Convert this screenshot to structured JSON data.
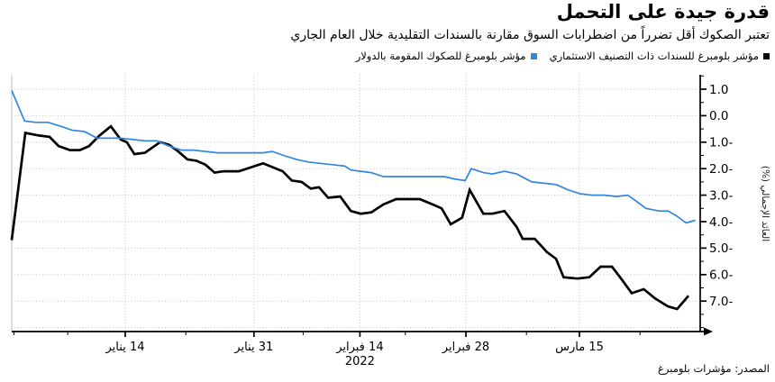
{
  "chart_data": {
    "type": "line",
    "title": "قدرة جيدة على التحمل",
    "subtitle": "تعتبر الصكوك أقل تضرراً من اضطرابات السوق مقارنة بالسندات التقليدية خلال العام الجاري",
    "source": "المصدر: مؤشرات بلومبرغ",
    "ylabel": "العائد الإجمالي (%)",
    "xlabel": "",
    "legend_position": "top-right",
    "grid": "dotted",
    "ylim": [
      -8.2,
      1.55
    ],
    "y_axis": {
      "grid_values": [
        1,
        0,
        -1,
        -2,
        -3,
        -4,
        -5,
        -6,
        -7,
        -8
      ],
      "ticks": [
        {
          "v": 1,
          "label": "1.0"
        },
        {
          "v": 0,
          "label": "0.0"
        },
        {
          "v": -1,
          "label": "1.0-"
        },
        {
          "v": -2,
          "label": "2.0-"
        },
        {
          "v": -3,
          "label": "3.0-"
        },
        {
          "v": -4,
          "label": "4.0-"
        },
        {
          "v": -5,
          "label": "5.0-"
        },
        {
          "v": -6,
          "label": "6.0-"
        },
        {
          "v": -7,
          "label": "7.0-"
        }
      ],
      "minor_values": [
        1.5,
        0.5,
        -0.5,
        -1.5,
        -2.5,
        -3.5,
        -4.5,
        -5.5,
        -6.5,
        -7.5,
        -8
      ]
    },
    "x_axis": {
      "major_ticks": [
        {
          "day": 15,
          "label": "14 يناير"
        },
        {
          "day": 32,
          "label": "31 يناير"
        },
        {
          "day": 46,
          "label": "14 فبراير"
        },
        {
          "day": 60,
          "label": "28 فبراير"
        },
        {
          "day": 75,
          "label": "15 مارس"
        }
      ],
      "minor_tick_days": [
        0.3,
        7.4,
        23,
        38.5,
        52,
        68,
        83
      ],
      "year_label": "2022",
      "year_label_day": 46
    },
    "series": [
      {
        "name": "مؤشر بلومبرغ للسندات ذات التصنيف الاستثماري",
        "color": "#000000",
        "width": 2.7,
        "points": [
          [
            0,
            -4.7
          ],
          [
            1.8,
            -0.65
          ],
          [
            3.6,
            -0.75
          ],
          [
            5,
            -0.8
          ],
          [
            6.2,
            -1.15
          ],
          [
            7.7,
            -1.3
          ],
          [
            9,
            -1.3
          ],
          [
            10.2,
            -1.15
          ],
          [
            11.6,
            -0.75
          ],
          [
            13.1,
            -0.4
          ],
          [
            14.4,
            -0.9
          ],
          [
            15.2,
            -1.0
          ],
          [
            16.2,
            -1.45
          ],
          [
            17.6,
            -1.4
          ],
          [
            19.6,
            -1.0
          ],
          [
            20.8,
            -1.1
          ],
          [
            22,
            -1.35
          ],
          [
            23.2,
            -1.65
          ],
          [
            24.4,
            -1.7
          ],
          [
            25.6,
            -1.85
          ],
          [
            26.8,
            -2.15
          ],
          [
            28,
            -2.1
          ],
          [
            30,
            -2.1
          ],
          [
            33.2,
            -1.8
          ],
          [
            35.8,
            -2.1
          ],
          [
            37,
            -2.45
          ],
          [
            38.3,
            -2.5
          ],
          [
            39.5,
            -2.75
          ],
          [
            40.6,
            -2.7
          ],
          [
            41.8,
            -3.1
          ],
          [
            43.4,
            -3.05
          ],
          [
            44.8,
            -3.6
          ],
          [
            46.1,
            -3.7
          ],
          [
            47.5,
            -3.65
          ],
          [
            49.1,
            -3.35
          ],
          [
            50.8,
            -3.15
          ],
          [
            52.3,
            -3.15
          ],
          [
            53.9,
            -3.15
          ],
          [
            55.6,
            -3.35
          ],
          [
            56.8,
            -3.5
          ],
          [
            58,
            -4.1
          ],
          [
            59.5,
            -3.85
          ],
          [
            60.5,
            -2.8
          ],
          [
            62.3,
            -3.7
          ],
          [
            63.5,
            -3.7
          ],
          [
            65.1,
            -3.6
          ],
          [
            66.7,
            -4.2
          ],
          [
            67.5,
            -4.65
          ],
          [
            69.1,
            -4.65
          ],
          [
            70.7,
            -5.15
          ],
          [
            71.9,
            -5.4
          ],
          [
            72.9,
            -6.1
          ],
          [
            74.7,
            -6.15
          ],
          [
            76.3,
            -6.1
          ],
          [
            77.8,
            -5.7
          ],
          [
            79.3,
            -5.7
          ],
          [
            80.5,
            -6.15
          ],
          [
            81.9,
            -6.7
          ],
          [
            83.5,
            -6.55
          ],
          [
            85,
            -6.9
          ],
          [
            86.7,
            -7.2
          ],
          [
            87.9,
            -7.3
          ],
          [
            89.4,
            -6.8
          ]
        ]
      },
      {
        "name": "مؤشر بلومبرغ للصكوك المقومة بالدولار",
        "color": "#3186dd",
        "width": 1.7,
        "points": [
          [
            0,
            0.95
          ],
          [
            1.7,
            -0.2
          ],
          [
            3.2,
            -0.25
          ],
          [
            4.8,
            -0.25
          ],
          [
            6.5,
            -0.4
          ],
          [
            8,
            -0.55
          ],
          [
            9.6,
            -0.6
          ],
          [
            11.3,
            -0.85
          ],
          [
            12.8,
            -0.85
          ],
          [
            14.4,
            -0.85
          ],
          [
            16,
            -0.9
          ],
          [
            17.6,
            -0.95
          ],
          [
            19.2,
            -0.95
          ],
          [
            20.8,
            -1.15
          ],
          [
            22.4,
            -1.3
          ],
          [
            24,
            -1.3
          ],
          [
            25.6,
            -1.35
          ],
          [
            27.2,
            -1.4
          ],
          [
            28.7,
            -1.4
          ],
          [
            30.4,
            -1.4
          ],
          [
            33.2,
            -1.4
          ],
          [
            34.4,
            -1.35
          ],
          [
            35.9,
            -1.5
          ],
          [
            37.6,
            -1.65
          ],
          [
            39.2,
            -1.75
          ],
          [
            40.7,
            -1.8
          ],
          [
            42.4,
            -1.85
          ],
          [
            44,
            -1.9
          ],
          [
            44.8,
            -2.05
          ],
          [
            46.1,
            -2.1
          ],
          [
            47.5,
            -2.15
          ],
          [
            49.1,
            -2.3
          ],
          [
            50.8,
            -2.3
          ],
          [
            52.3,
            -2.3
          ],
          [
            53.9,
            -2.3
          ],
          [
            55.6,
            -2.3
          ],
          [
            57.1,
            -2.3
          ],
          [
            58.7,
            -2.4
          ],
          [
            59.9,
            -2.45
          ],
          [
            60.7,
            -2.0
          ],
          [
            62.3,
            -2.15
          ],
          [
            63.5,
            -2.2
          ],
          [
            65.1,
            -2.1
          ],
          [
            66.7,
            -2.2
          ],
          [
            68.7,
            -2.5
          ],
          [
            70.3,
            -2.55
          ],
          [
            71.9,
            -2.6
          ],
          [
            73.5,
            -2.8
          ],
          [
            75.1,
            -2.95
          ],
          [
            76.6,
            -3.0
          ],
          [
            78.3,
            -3.0
          ],
          [
            79.9,
            -3.05
          ],
          [
            81.4,
            -3.0
          ],
          [
            82.6,
            -3.25
          ],
          [
            83.8,
            -3.5
          ],
          [
            85.5,
            -3.6
          ],
          [
            86.7,
            -3.6
          ],
          [
            87.9,
            -3.8
          ],
          [
            89.1,
            -4.05
          ],
          [
            90.3,
            -3.95
          ]
        ]
      }
    ]
  },
  "colors": {
    "bond_series": "#000000",
    "sukuk_series": "#3186dd",
    "gridline": "#c3c3c3",
    "axis": "#000000"
  }
}
